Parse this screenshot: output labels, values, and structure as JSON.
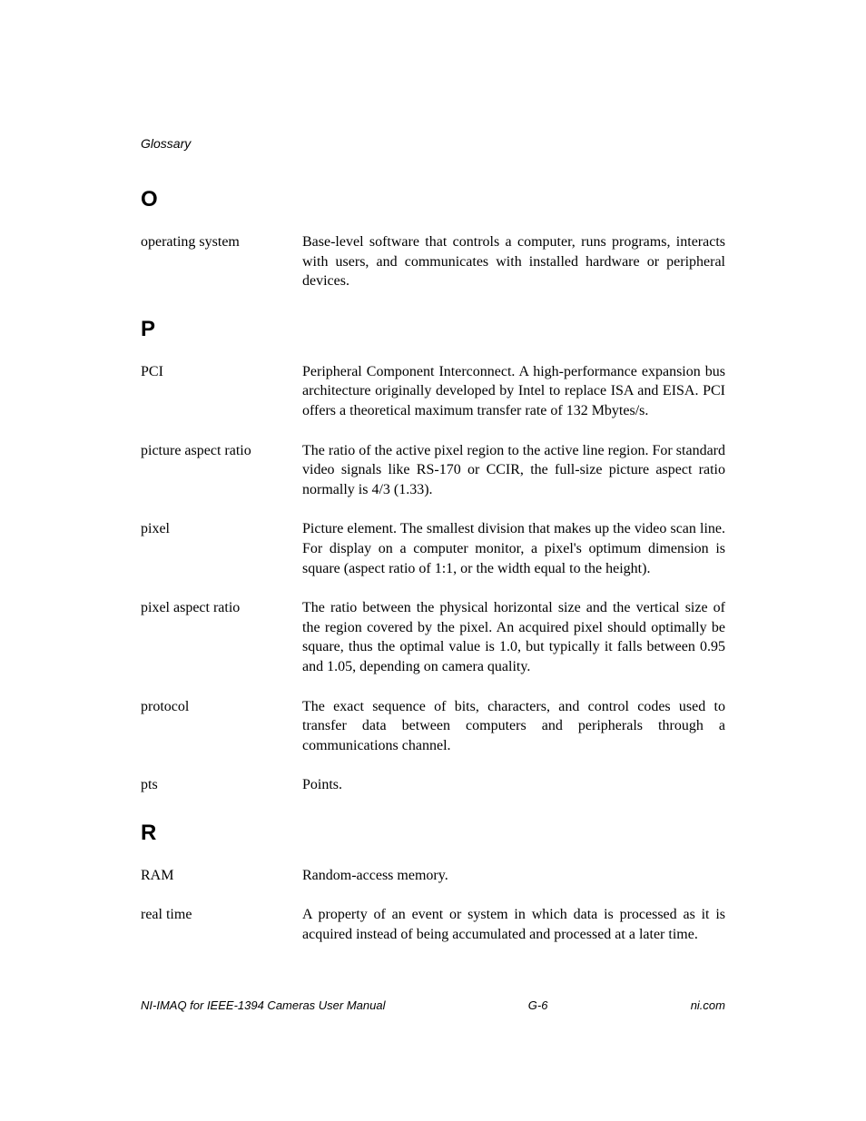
{
  "header": "Glossary",
  "sections": [
    {
      "letter": "O",
      "entries": [
        {
          "term": "operating system",
          "definition": "Base-level software that controls a computer, runs programs, interacts with users, and communicates with installed hardware or peripheral devices."
        }
      ]
    },
    {
      "letter": "P",
      "entries": [
        {
          "term": "PCI",
          "definition": "Peripheral Component Interconnect. A high-performance expansion bus architecture originally developed by Intel to replace ISA and EISA. PCI offers a theoretical maximum transfer rate of 132 Mbytes/s."
        },
        {
          "term": "picture aspect ratio",
          "definition": "The ratio of the active pixel region to the active line region. For standard video signals like RS-170 or CCIR, the full-size picture aspect ratio normally is 4/3 (1.33)."
        },
        {
          "term": "pixel",
          "definition": "Picture element. The smallest division that makes up the video scan line. For display on a computer monitor, a pixel's optimum dimension is square (aspect ratio of 1:1, or the width equal to the height)."
        },
        {
          "term": "pixel aspect ratio",
          "definition": "The ratio between the physical horizontal size and the vertical size of the region covered by the pixel. An acquired pixel should optimally be square, thus the optimal value is 1.0, but typically it falls between 0.95 and 1.05, depending on camera quality."
        },
        {
          "term": "protocol",
          "definition": "The exact sequence of bits, characters, and control codes used to transfer data between computers and peripherals through a communications channel."
        },
        {
          "term": "pts",
          "definition": "Points."
        }
      ]
    },
    {
      "letter": "R",
      "entries": [
        {
          "term": "RAM",
          "definition": "Random-access memory."
        },
        {
          "term": "real time",
          "definition": "A property of an event or system in which data is processed as it is acquired instead of being accumulated and processed at a later time."
        }
      ]
    }
  ],
  "footer": {
    "left": "NI-IMAQ for IEEE-1394 Cameras User Manual",
    "center": "G-6",
    "right": "ni.com"
  }
}
